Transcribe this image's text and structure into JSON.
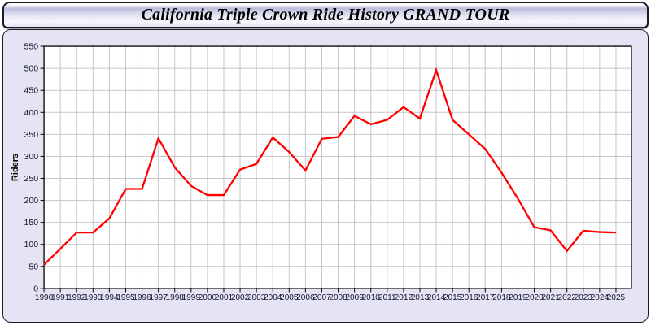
{
  "header": {
    "title": "California Triple Crown Ride History GRAND TOUR"
  },
  "panel": {
    "bg": "#e4e4f4",
    "border_color": "#1b1b24"
  },
  "chart_data": {
    "type": "line",
    "title": "California Triple Crown Ride History GRAND TOUR",
    "xlabel": "",
    "ylabel": "Riders",
    "x": [
      1990,
      1991,
      1992,
      1993,
      1994,
      1995,
      1996,
      1997,
      1998,
      1999,
      2000,
      2001,
      2002,
      2003,
      2004,
      2005,
      2006,
      2007,
      2008,
      2009,
      2010,
      2011,
      2012,
      2013,
      2014,
      2015,
      2016,
      2017,
      2018,
      2019,
      2020,
      2021,
      2022,
      2023,
      2024,
      2025
    ],
    "series": [
      {
        "name": "Riders",
        "color": "#ff0000",
        "values": [
          54,
          90,
          127,
          127,
          159,
          226,
          226,
          341,
          275,
          233,
          212,
          212,
          270,
          283,
          343,
          310,
          268,
          340,
          344,
          392,
          373,
          383,
          412,
          386,
          496,
          383,
          350,
          317,
          263,
          204,
          139,
          132,
          85,
          131,
          128,
          127
        ]
      }
    ],
    "ylim": [
      0,
      550
    ],
    "ytick_step": 50,
    "grid": true,
    "legend": "none",
    "plot_bg": "#ffffff",
    "grid_color": "#c5c5c5",
    "axis_color": "#000000",
    "tick_label_color": "#14142e"
  }
}
